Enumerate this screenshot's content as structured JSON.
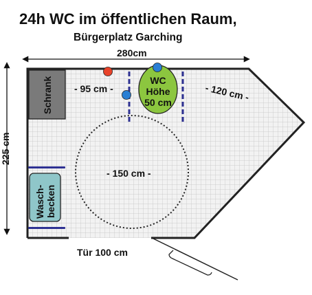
{
  "title": "24h WC im öffentlichen Raum,",
  "subtitle": "Bürgerplatz Garching",
  "width_label": "280cm",
  "height_label": "225 cm",
  "door_label": "Tür 100 cm",
  "clearance_left": "- 95 cm -",
  "clearance_right": "- 120 cm -",
  "turning_circle": "- 150 cm -",
  "wc": {
    "line1": "WC",
    "line2": "Höhe",
    "line3": "50 cm"
  },
  "cabinet": "Schrank",
  "sink": {
    "line1": "Wasch-",
    "line2": "becken"
  },
  "colors": {
    "wall": "#222222",
    "tile_bg": "#f2f2f2",
    "tile_grid": "#c4c4c4",
    "cabinet": "#7a7a7a",
    "wc": "#8cc63f",
    "sink": "#8fc6c9",
    "grab_bar": "#2e3192",
    "red_marker": "#e8432a",
    "blue_marker": "#2a7fd4"
  }
}
